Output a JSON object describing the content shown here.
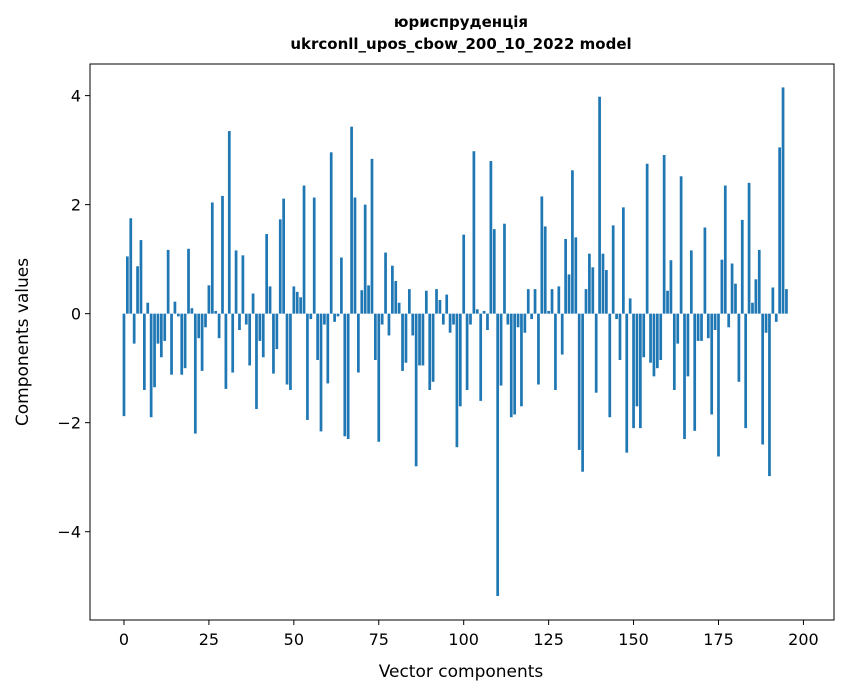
{
  "chart_data": {
    "type": "bar",
    "title": [
      "юриспруденція",
      "ukrconll_upos_cbow_200_10_2022 model"
    ],
    "xlabel": "Vector components",
    "ylabel": "Components values",
    "xlim": [
      -10,
      209
    ],
    "ylim": [
      -5.62,
      4.58
    ],
    "xticks": [
      0,
      25,
      50,
      75,
      100,
      125,
      150,
      175,
      200
    ],
    "yticks": [
      -4,
      -2,
      0,
      2,
      4
    ],
    "ytick_labels": [
      "−4",
      "−2",
      "0",
      "2",
      "4"
    ],
    "grid": false,
    "color": "#1f77b4",
    "values": [
      -1.88,
      1.05,
      1.75,
      -0.55,
      0.87,
      1.35,
      -1.4,
      0.2,
      -1.9,
      -1.35,
      -0.55,
      -0.8,
      -0.5,
      1.17,
      -1.12,
      0.22,
      -0.05,
      -1.12,
      -1.0,
      1.19,
      0.1,
      -2.2,
      -0.45,
      -1.05,
      -0.25,
      0.52,
      2.04,
      0.05,
      -0.45,
      2.16,
      -1.38,
      3.35,
      -1.08,
      1.16,
      -0.3,
      1.07,
      -0.2,
      -0.95,
      0.37,
      -1.75,
      -0.5,
      -0.8,
      1.46,
      0.5,
      -1.1,
      -0.65,
      1.73,
      2.11,
      -1.3,
      -1.4,
      0.5,
      0.4,
      0.3,
      2.35,
      -1.95,
      -0.1,
      2.13,
      -0.85,
      -2.16,
      -0.2,
      -1.28,
      2.96,
      -0.15,
      -0.05,
      1.03,
      -2.25,
      -2.3,
      3.43,
      2.13,
      -1.08,
      0.43,
      2.0,
      0.52,
      2.84,
      -0.85,
      -2.35,
      -0.2,
      1.12,
      -0.4,
      0.88,
      0.6,
      0.2,
      -1.05,
      -0.9,
      0.45,
      -0.4,
      -2.8,
      -0.95,
      -0.95,
      0.42,
      -1.4,
      -1.25,
      0.45,
      0.25,
      -0.2,
      0.35,
      -0.35,
      -0.2,
      -2.45,
      -1.7,
      1.45,
      -1.4,
      -0.2,
      2.98,
      0.08,
      -1.6,
      0.05,
      -0.3,
      2.8,
      1.55,
      -5.18,
      -1.32,
      1.65,
      -0.2,
      -1.9,
      -1.85,
      -0.25,
      -1.7,
      -0.35,
      0.45,
      -0.1,
      0.45,
      -1.3,
      2.15,
      1.6,
      0.05,
      0.45,
      -1.4,
      0.5,
      -0.75,
      1.37,
      0.72,
      2.63,
      1.4,
      -2.5,
      -2.9,
      0.45,
      1.1,
      0.85,
      -1.45,
      3.98,
      1.1,
      0.8,
      -1.9,
      1.62,
      -0.1,
      -0.85,
      1.95,
      -2.55,
      0.28,
      -2.1,
      -1.7,
      -2.1,
      -0.8,
      2.75,
      -0.9,
      -1.15,
      -1.0,
      -0.85,
      2.91,
      0.42,
      0.98,
      -1.4,
      -0.55,
      2.52,
      -2.3,
      -1.15,
      1.16,
      -2.15,
      -0.5,
      -0.5,
      1.58,
      -0.45,
      -1.85,
      -0.3,
      -2.62,
      0.99,
      2.35,
      -0.25,
      0.92,
      0.55,
      -1.25,
      1.72,
      -2.1,
      2.4,
      0.2,
      0.63,
      1.17,
      -2.4,
      -0.35,
      -2.98,
      0.48,
      -0.15,
      3.05,
      4.15,
      0.45
    ]
  }
}
